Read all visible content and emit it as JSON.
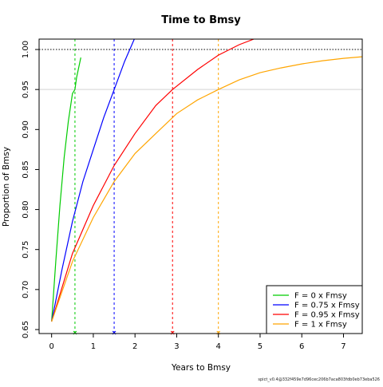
{
  "chart_data": {
    "type": "line",
    "title": "Time to Bmsy",
    "xlabel": "Years to Bmsy",
    "ylabel": "Proportion of Bmsy",
    "xlim": [
      -0.3,
      7.45
    ],
    "ylim": [
      0.645,
      1.013
    ],
    "x_ticks": [
      0,
      1,
      2,
      3,
      4,
      5,
      6,
      7
    ],
    "y_ticks": [
      0.65,
      0.7,
      0.75,
      0.8,
      0.85,
      0.9,
      0.95,
      1.0
    ],
    "y_tick_labels": [
      "0.65",
      "0.70",
      "0.75",
      "0.80",
      "0.85",
      "0.90",
      "0.95",
      "1.00"
    ],
    "reference_lines": [
      {
        "type": "hline",
        "y": 1.0,
        "style": "dotted",
        "color": "#000000"
      },
      {
        "type": "hline",
        "y": 0.95,
        "style": "solid",
        "color": "#d3d3d3"
      }
    ],
    "legend_position": "bottom-right",
    "series": [
      {
        "name": "F = 0 x Fmsy",
        "color": "#00cc00",
        "x": [
          0,
          0.1,
          0.2,
          0.3,
          0.4,
          0.5,
          0.56,
          0.6,
          0.7
        ],
        "y": [
          0.66,
          0.735,
          0.805,
          0.865,
          0.91,
          0.945,
          0.95,
          0.965,
          0.99
        ],
        "vline_x": 0.56
      },
      {
        "name": "F = 0.75 x Fmsy",
        "color": "#0000ff",
        "x": [
          0,
          0.25,
          0.5,
          0.75,
          1.0,
          1.25,
          1.5,
          1.75,
          2.0
        ],
        "y": [
          0.66,
          0.725,
          0.785,
          0.835,
          0.875,
          0.915,
          0.95,
          0.985,
          1.015
        ],
        "vline_x": 1.5
      },
      {
        "name": "F = 0.95 x Fmsy",
        "color": "#ff0000",
        "x": [
          0,
          0.5,
          1.0,
          1.5,
          2.0,
          2.5,
          2.9,
          3.5,
          4.0,
          4.5,
          4.85
        ],
        "y": [
          0.66,
          0.745,
          0.805,
          0.855,
          0.895,
          0.93,
          0.95,
          0.975,
          0.993,
          1.006,
          1.013
        ],
        "vline_x": 2.9
      },
      {
        "name": "F = 1 x Fmsy",
        "color": "#ffa500",
        "x": [
          0,
          0.5,
          1.0,
          1.5,
          2.0,
          2.5,
          3.0,
          3.5,
          4.0,
          4.5,
          5.0,
          5.5,
          6.0,
          6.5,
          7.0,
          7.45
        ],
        "y": [
          0.66,
          0.735,
          0.79,
          0.835,
          0.87,
          0.895,
          0.92,
          0.937,
          0.95,
          0.962,
          0.971,
          0.977,
          0.982,
          0.986,
          0.989,
          0.991
        ],
        "vline_x": 4.0
      }
    ],
    "footer_note": "spict_v0.4@332f459e7d96cec206b7aca803fdb0eb73eba526"
  }
}
